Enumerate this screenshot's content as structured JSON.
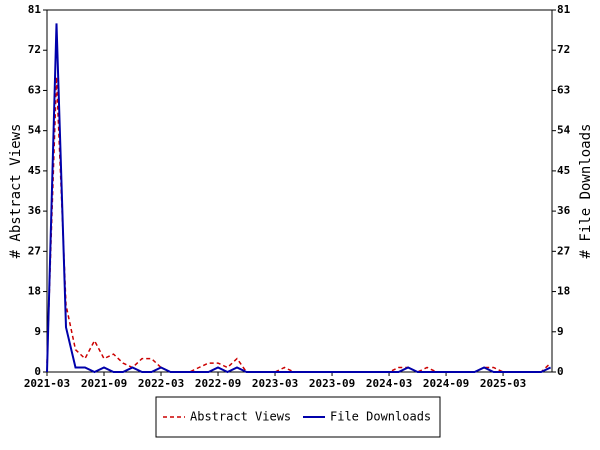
{
  "chart_data": {
    "type": "line",
    "categories": [
      "2021-03",
      null,
      null,
      null,
      null,
      null,
      "2021-09",
      null,
      null,
      null,
      null,
      null,
      "2022-03",
      null,
      null,
      null,
      null,
      null,
      "2022-09",
      null,
      null,
      null,
      null,
      null,
      "2023-03",
      null,
      null,
      null,
      null,
      null,
      "2023-09",
      null,
      null,
      null,
      null,
      null,
      "2024-03",
      null,
      null,
      null,
      null,
      null,
      "2024-09",
      null,
      null,
      null,
      null,
      null,
      "2025-03",
      null,
      null,
      null,
      null,
      null
    ],
    "series": [
      {
        "name": "Abstract Views",
        "color": "#cc0000",
        "dash": true,
        "axis": "y",
        "values": [
          2,
          66,
          15,
          5,
          3,
          7,
          3,
          4,
          2,
          1,
          3,
          3,
          1,
          0,
          0,
          0,
          1,
          2,
          2,
          1,
          3,
          0,
          0,
          0,
          0,
          1,
          0,
          0,
          0,
          0,
          0,
          0,
          0,
          0,
          0,
          0,
          0,
          1,
          1,
          0,
          1,
          0,
          0,
          0,
          0,
          0,
          1,
          1,
          0,
          0,
          0,
          0,
          0,
          2
        ]
      },
      {
        "name": "File Downloads",
        "color": "#0000aa",
        "dash": false,
        "axis": "y2",
        "values": [
          0,
          78,
          10,
          1,
          1,
          0,
          1,
          0,
          0,
          1,
          0,
          0,
          1,
          0,
          0,
          0,
          0,
          0,
          1,
          0,
          1,
          0,
          0,
          0,
          0,
          0,
          0,
          0,
          0,
          0,
          0,
          0,
          0,
          0,
          0,
          0,
          0,
          0,
          1,
          0,
          0,
          0,
          0,
          0,
          0,
          0,
          1,
          0,
          0,
          0,
          0,
          0,
          0,
          1
        ]
      }
    ],
    "ylabel": "# Abstract Views",
    "y2label": "# File Downloads",
    "ylim": [
      0,
      81
    ],
    "yticks": [
      0,
      9,
      18,
      27,
      36,
      45,
      54,
      63,
      72,
      81
    ],
    "y2lim": [
      0,
      81
    ],
    "y2ticks": [
      0,
      9,
      18,
      27,
      36,
      45,
      54,
      63,
      72,
      81
    ],
    "legend": "bottom"
  }
}
